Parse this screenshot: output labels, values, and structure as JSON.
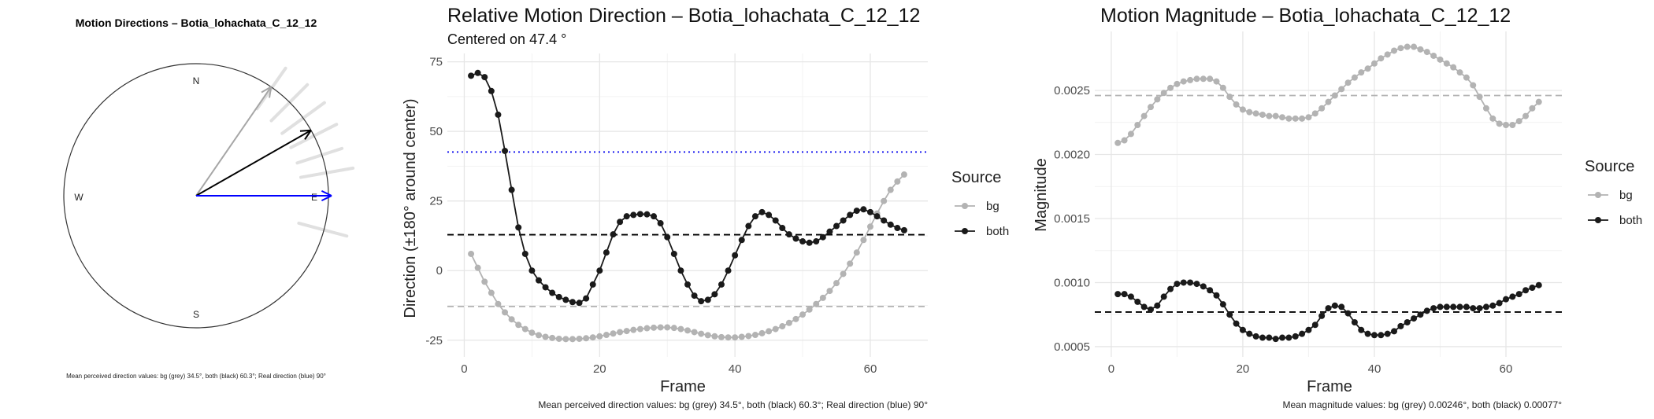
{
  "compass": {
    "title": "Motion Directions – Botia_lohachata_C_12_12",
    "labels": {
      "n": "N",
      "s": "S",
      "e": "E",
      "w": "W"
    },
    "caption": "Mean perceived direction values: bg (grey) 34.5°, both (black) 60.3°; Real direction (blue) 90°",
    "bg_angle_deg": 34.5,
    "both_angle_deg": 60.3,
    "real_angle_deg": 90,
    "colors": {
      "bg": "#a6a6a6",
      "both": "#000000",
      "real": "#0000ff",
      "spokes": "#e0e0e0"
    }
  },
  "direction_chart": {
    "title": "Relative Motion Direction – Botia_lohachata_C_12_12",
    "subtitle": "Centered on  47.4 °",
    "caption": "Mean perceived direction values: bg (grey) 34.5°, both (black) 60.3°; Real direction (blue) 90°",
    "legend_title": "Source"
  },
  "magnitude_chart": {
    "title": "Motion Magnitude – Botia_lohachata_C_12_12",
    "caption": "Mean magnitude values: bg (grey) 0.00246°, both (black) 0.00077°",
    "legend_title": "Source"
  },
  "chart_data": [
    {
      "type": "line",
      "title": "Relative Motion Direction – Botia_lohachata_C_12_12",
      "subtitle": "Centered on  47.4 °",
      "xlabel": "Frame",
      "ylabel": "Direction (±180° around center)",
      "xlim": [
        -2.5,
        68.5
      ],
      "ylim": [
        -31,
        78
      ],
      "xticks": [
        0,
        20,
        40,
        60
      ],
      "yticks": [
        -25,
        0,
        25,
        50,
        75
      ],
      "ytick_labels": [
        "-25",
        "0",
        "25",
        "50",
        "75"
      ],
      "grid": true,
      "legend": "right",
      "x": [
        1,
        2,
        3,
        4,
        5,
        6,
        7,
        8,
        9,
        10,
        11,
        12,
        13,
        14,
        15,
        16,
        17,
        18,
        19,
        20,
        21,
        22,
        23,
        24,
        25,
        26,
        27,
        28,
        29,
        30,
        31,
        32,
        33,
        34,
        35,
        36,
        37,
        38,
        39,
        40,
        41,
        42,
        43,
        44,
        45,
        46,
        47,
        48,
        49,
        50,
        51,
        52,
        53,
        54,
        55,
        56,
        57,
        58,
        59,
        60,
        61,
        62,
        63,
        64,
        65
      ],
      "series": [
        {
          "name": "bg",
          "color": "#b3b3b3",
          "values": [
            6,
            1,
            -4,
            -8,
            -12,
            -15,
            -17.5,
            -19.5,
            -21,
            -22.3,
            -23.2,
            -23.8,
            -24.2,
            -24.5,
            -24.6,
            -24.6,
            -24.5,
            -24.3,
            -24,
            -23.6,
            -23.1,
            -22.6,
            -22.1,
            -21.7,
            -21.3,
            -21,
            -20.7,
            -20.5,
            -20.4,
            -20.4,
            -20.6,
            -21,
            -21.5,
            -22.1,
            -22.7,
            -23.2,
            -23.6,
            -23.9,
            -24,
            -24,
            -23.8,
            -23.5,
            -23.1,
            -22.5,
            -21.8,
            -21,
            -20,
            -18.8,
            -17.4,
            -15.8,
            -14,
            -12,
            -9.8,
            -7.3,
            -4.5,
            -1.2,
            2.5,
            6.5,
            11,
            15.8,
            20.5,
            25,
            29,
            32,
            34.5
          ]
        },
        {
          "name": "both",
          "color": "#1a1a1a",
          "values": [
            70,
            71,
            69.5,
            64.5,
            56,
            43,
            29,
            15.5,
            6,
            0,
            -3.5,
            -6,
            -8,
            -9.5,
            -10.5,
            -11.3,
            -11.6,
            -10,
            -5,
            0,
            6.5,
            13,
            17.5,
            19.5,
            20,
            20.3,
            20.2,
            19.5,
            17,
            12,
            6,
            0,
            -5,
            -9,
            -11,
            -10.5,
            -8.5,
            -5,
            0,
            5.5,
            11,
            16,
            19.5,
            21,
            20,
            18,
            15.3,
            13,
            11.5,
            10.5,
            10,
            10.5,
            12,
            14,
            16,
            18,
            20,
            21.5,
            22,
            21,
            19.5,
            18,
            16.5,
            15.3,
            14.5
          ]
        }
      ],
      "hlines": [
        {
          "name": "real-direction",
          "y": 42.6,
          "style": "dotted",
          "color": "#0000ee"
        },
        {
          "name": "both-mean",
          "y": 12.9,
          "style": "dashed",
          "color": "#000000"
        },
        {
          "name": "bg-mean",
          "y": -12.9,
          "style": "dashed",
          "color": "#b3b3b3"
        }
      ]
    },
    {
      "type": "line",
      "title": "Motion Magnitude – Botia_lohachata_C_12_12",
      "xlabel": "Frame",
      "ylabel": "Magnitude",
      "xlim": [
        -2.5,
        68.5
      ],
      "ylim": [
        0.00042,
        0.00296
      ],
      "xticks": [
        0,
        20,
        40,
        60
      ],
      "yticks": [
        0.0005,
        0.001,
        0.0015,
        0.002,
        0.0025
      ],
      "ytick_labels": [
        "0.0005",
        "0.0010",
        "0.0015",
        "0.0020",
        "0.0025"
      ],
      "grid": true,
      "legend": "right",
      "x": [
        1,
        2,
        3,
        4,
        5,
        6,
        7,
        8,
        9,
        10,
        11,
        12,
        13,
        14,
        15,
        16,
        17,
        18,
        19,
        20,
        21,
        22,
        23,
        24,
        25,
        26,
        27,
        28,
        29,
        30,
        31,
        32,
        33,
        34,
        35,
        36,
        37,
        38,
        39,
        40,
        41,
        42,
        43,
        44,
        45,
        46,
        47,
        48,
        49,
        50,
        51,
        52,
        53,
        54,
        55,
        56,
        57,
        58,
        59,
        60,
        61,
        62,
        63,
        64,
        65
      ],
      "series": [
        {
          "name": "bg",
          "color": "#b3b3b3",
          "values": [
            0.00209,
            0.00211,
            0.00216,
            0.00223,
            0.0023,
            0.00237,
            0.00243,
            0.00248,
            0.00252,
            0.00255,
            0.00257,
            0.00258,
            0.00259,
            0.00259,
            0.00259,
            0.00257,
            0.00252,
            0.00245,
            0.00239,
            0.00235,
            0.00233,
            0.00232,
            0.00231,
            0.0023,
            0.0023,
            0.00229,
            0.00228,
            0.00228,
            0.00228,
            0.00229,
            0.00232,
            0.00236,
            0.00241,
            0.00246,
            0.00251,
            0.00256,
            0.0026,
            0.00264,
            0.00267,
            0.00271,
            0.00275,
            0.00278,
            0.00281,
            0.00283,
            0.00284,
            0.00284,
            0.00282,
            0.0028,
            0.00277,
            0.00274,
            0.00271,
            0.00268,
            0.00264,
            0.0026,
            0.00254,
            0.00245,
            0.00236,
            0.00228,
            0.00224,
            0.00223,
            0.00223,
            0.00226,
            0.0023,
            0.00236,
            0.00241
          ]
        },
        {
          "name": "both",
          "color": "#1a1a1a",
          "values": [
            0.00091,
            0.00091,
            0.00089,
            0.00085,
            0.00081,
            0.00079,
            0.00082,
            0.00089,
            0.00095,
            0.00099,
            0.001,
            0.001,
            0.00099,
            0.00097,
            0.00094,
            0.0009,
            0.00083,
            0.00075,
            0.00068,
            0.00063,
            0.0006,
            0.00058,
            0.00057,
            0.00057,
            0.00056,
            0.00057,
            0.00057,
            0.00058,
            0.0006,
            0.00063,
            0.00067,
            0.00074,
            0.0008,
            0.00082,
            0.00081,
            0.00076,
            0.00069,
            0.00063,
            0.0006,
            0.00059,
            0.00059,
            0.0006,
            0.00062,
            0.00066,
            0.00069,
            0.00072,
            0.00075,
            0.00078,
            0.0008,
            0.00081,
            0.00081,
            0.00081,
            0.00081,
            0.00081,
            0.0008,
            0.0008,
            0.00081,
            0.00082,
            0.00084,
            0.00087,
            0.00089,
            0.00091,
            0.00094,
            0.00096,
            0.00098
          ]
        }
      ],
      "hlines": [
        {
          "name": "bg-mean",
          "y": 0.00246,
          "style": "dashed",
          "color": "#b3b3b3"
        },
        {
          "name": "both-mean",
          "y": 0.00077,
          "style": "dashed",
          "color": "#000000"
        }
      ]
    }
  ]
}
